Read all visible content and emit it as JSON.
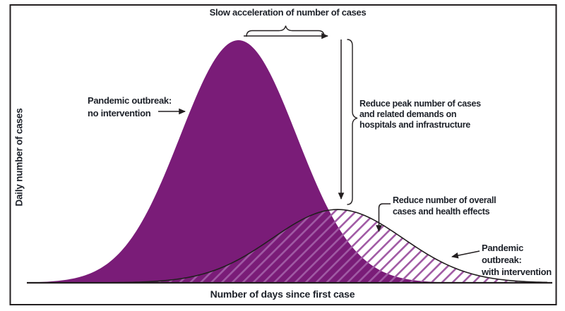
{
  "figure": {
    "kind": "conceptual epidemic curve figure (flatten the curve)",
    "background": "#ffffff",
    "border_color": "#231f20"
  },
  "colors": {
    "no_intervention_fill": "#7a1c78",
    "hatch_line": "#a05aa4",
    "outline": "#231f20",
    "text": "#1d2129"
  },
  "labels": {
    "y_axis": "Daily number of cases",
    "x_axis": "Number of days since first case",
    "slow_acceleration": "Slow acceleration of number of cases",
    "no_intervention": "Pandemic outbreak:\nno intervention",
    "reduce_peak": "Reduce peak number of cases\nand related demands on\nhospitals and infrastructure",
    "reduce_overall": "Reduce number of overall\ncases and health effects",
    "with_intervention": "Pandemic outbreak:\nwith intervention"
  },
  "chart_data": {
    "type": "area",
    "title": "",
    "xlabel": "Number of days since first case",
    "ylabel": "Daily number of cases",
    "x_ticks": "none",
    "y_ticks": "none",
    "grid": false,
    "legend": "inline-annotations",
    "series": [
      {
        "name": "Pandemic outbreak: no intervention",
        "style": "solid-purple-fill",
        "shape": "bell",
        "peak_x_fraction": 0.405,
        "sigma_fraction": 0.112,
        "peak_height_fraction": 1.0
      },
      {
        "name": "Pandemic outbreak: with intervention",
        "style": "purple-diagonal-hatch-with-black-outline",
        "shape": "bell",
        "peak_x_fraction": 0.596,
        "sigma_fraction": 0.126,
        "peak_height_fraction": 0.302
      }
    ],
    "annotations": [
      "Slow acceleration of number of cases",
      "Reduce peak number of cases and related demands on hospitals and infrastructure",
      "Reduce number of overall cases and health effects"
    ]
  }
}
